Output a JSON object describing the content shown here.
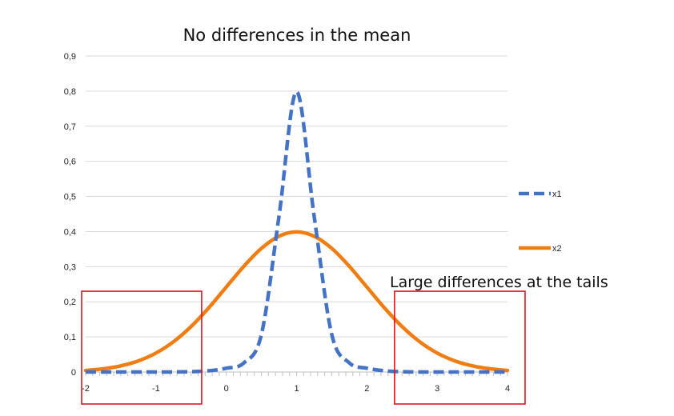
{
  "chart_data": {
    "type": "line",
    "title": "No differences in the mean",
    "xlim": [
      -2,
      4
    ],
    "ylim": [
      0,
      0.9
    ],
    "x_ticks": [
      -2,
      -1,
      0,
      1,
      2,
      3,
      4
    ],
    "x_tick_labels": [
      "-2",
      "-1",
      "0",
      "1",
      "2",
      "3",
      "4"
    ],
    "y_ticks": [
      0,
      0.1,
      0.2,
      0.3,
      0.4,
      0.5,
      0.6,
      0.7,
      0.8,
      0.9
    ],
    "y_tick_labels": [
      "0",
      "0,1",
      "0,2",
      "0,3",
      "0,4",
      "0,5",
      "0,6",
      "0,7",
      "0,8",
      "0,9"
    ],
    "grid": "horizontal",
    "legend_position": "right",
    "x": [
      -2,
      -1.75,
      -1.5,
      -1.25,
      -1,
      -0.75,
      -0.5,
      -0.25,
      0,
      0.25,
      0.5,
      0.75,
      1,
      1.25,
      1.5,
      1.75,
      2,
      2.25,
      2.5,
      2.75,
      3,
      3.25,
      3.5,
      3.75,
      4
    ],
    "series": [
      {
        "name": "x1",
        "color": "#4472C4",
        "style": "dashed",
        "values": [
          0,
          0,
          0,
          0,
          0,
          0.0001,
          0.0009,
          0.0035,
          0.0108,
          0.0259,
          0.107,
          0.4434,
          0.7979,
          0.4434,
          0.107,
          0.0259,
          0.0108,
          0.0035,
          0.0009,
          0.0001,
          0,
          0,
          0,
          0,
          0
        ]
      },
      {
        "name": "x2",
        "color": "#F07D12",
        "style": "solid",
        "values": [
          0.0044,
          0.0091,
          0.0175,
          0.0317,
          0.054,
          0.0863,
          0.1295,
          0.1826,
          0.242,
          0.3011,
          0.3521,
          0.3867,
          0.3989,
          0.3867,
          0.3521,
          0.3011,
          0.242,
          0.1826,
          0.1295,
          0.0863,
          0.054,
          0.0317,
          0.0175,
          0.0091,
          0.0044
        ]
      }
    ],
    "annotations": [
      {
        "text": "Large differences at the tails"
      }
    ],
    "highlight_regions": [
      {
        "x_range": [
          -2,
          -0.35
        ],
        "y_range": [
          0,
          0.23
        ],
        "color": "#E0141E"
      },
      {
        "x_range": [
          2.45,
          4.25
        ],
        "y_range": [
          0,
          0.23
        ],
        "color": "#E0141E"
      }
    ]
  }
}
